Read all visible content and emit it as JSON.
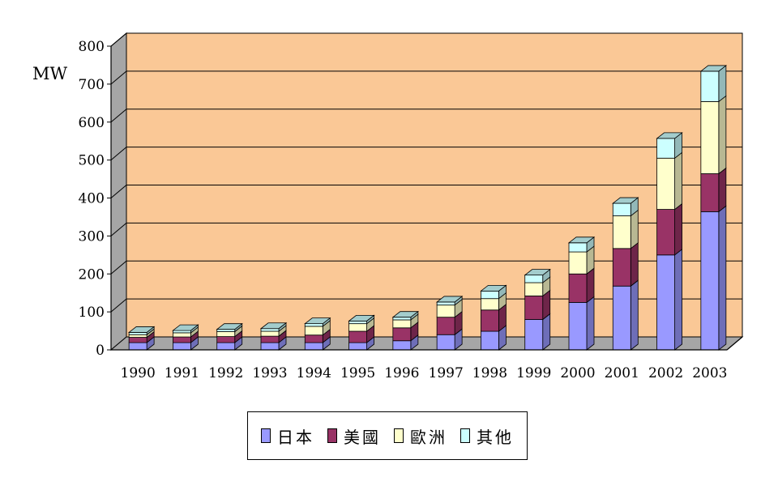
{
  "chart_data": {
    "type": "bar",
    "stacked": true,
    "three_d": true,
    "ylabel": "MW",
    "xlabel": "",
    "title": "",
    "ylim": [
      0,
      800
    ],
    "yticks": [
      0,
      100,
      200,
      300,
      400,
      500,
      600,
      700,
      800
    ],
    "grid": true,
    "legend_position": "bottom",
    "categories": [
      "1990",
      "1991",
      "1992",
      "1993",
      "1994",
      "1995",
      "1996",
      "1997",
      "1998",
      "1999",
      "2000",
      "2001",
      "2002",
      "2003"
    ],
    "series": [
      {
        "name": "日本",
        "color": "#9999ff",
        "values": [
          19,
          19,
          19,
          19,
          19,
          19,
          24,
          40,
          49,
          80,
          125,
          168,
          250,
          364
        ]
      },
      {
        "name": "美國",
        "color": "#993366",
        "values": [
          14,
          15,
          16,
          17,
          20,
          30,
          34,
          46,
          56,
          62,
          75,
          99,
          120,
          100
        ]
      },
      {
        "name": "歐洲",
        "color": "#ffffcc",
        "values": [
          7,
          11,
          13,
          13,
          23,
          20,
          21,
          32,
          30,
          35,
          58,
          86,
          135,
          190
        ]
      },
      {
        "name": "其他",
        "color": "#ccffff",
        "values": [
          6,
          6,
          6,
          7,
          7,
          7,
          7,
          8,
          20,
          20,
          24,
          33,
          52,
          80
        ]
      }
    ]
  }
}
